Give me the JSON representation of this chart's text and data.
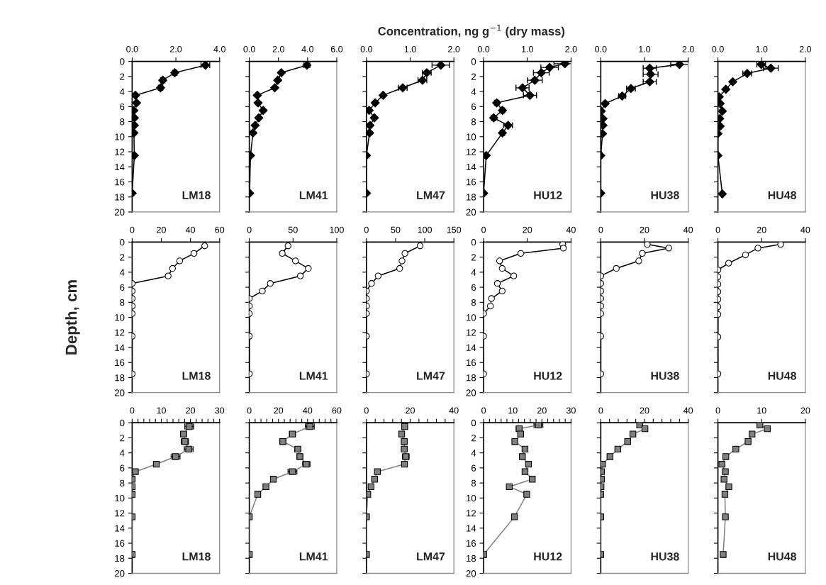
{
  "chart_data": [
    {
      "type": "line",
      "marker": "diamond",
      "annotations": [
        "LM18"
      ],
      "xlim": [
        0,
        4
      ],
      "xticks": [
        {
          "value": 0,
          "label": "0.0"
        },
        {
          "value": 2,
          "label": "2.0"
        },
        {
          "value": 4,
          "label": "4.0"
        }
      ],
      "ylim": [
        20,
        0
      ],
      "yticks": [
        0,
        2,
        4,
        6,
        8,
        10,
        12,
        14,
        16,
        18,
        20
      ],
      "series": [
        {
          "color": "#000000",
          "x": [
            3.35,
            1.95,
            1.4,
            1.3,
            0.15,
            0.2,
            0.08,
            0.1,
            0.1,
            0.08,
            0.1,
            0.0
          ],
          "values": [
            0.5,
            1.5,
            2.5,
            3.5,
            4.5,
            5.5,
            6.5,
            7.5,
            8.5,
            9.5,
            12.5,
            17.5
          ],
          "xerrors": [
            0.2,
            0.1,
            0.1,
            0.1,
            null,
            null,
            null,
            null,
            null,
            null,
            null,
            null
          ]
        }
      ]
    },
    {
      "type": "line",
      "marker": "diamond",
      "annotations": [
        "LM41"
      ],
      "tick_labels": "x",
      "xlim": [
        0,
        6
      ],
      "xticks": [
        {
          "value": 0,
          "label": "0.0"
        },
        {
          "value": 2,
          "label": "2.0"
        },
        {
          "value": 4,
          "label": "4.0"
        },
        {
          "value": 6,
          "label": "6.0"
        }
      ],
      "ylim": [
        20,
        0
      ],
      "yticks": [
        0,
        2,
        4,
        6,
        8,
        10,
        12,
        14,
        16,
        18,
        20
      ],
      "series": [
        {
          "color": "#000000",
          "x": [
            3.95,
            2.2,
            1.95,
            1.75,
            0.55,
            0.6,
            0.95,
            0.65,
            0.4,
            0.25,
            0.08,
            0.02
          ],
          "values": [
            0.5,
            1.5,
            2.5,
            3.5,
            4.5,
            5.5,
            6.5,
            7.5,
            8.5,
            9.5,
            12.5,
            17.5
          ],
          "xerrors": [
            0.2,
            null,
            null,
            null,
            null,
            null,
            null,
            null,
            null,
            null,
            null,
            null
          ]
        }
      ]
    },
    {
      "type": "line",
      "marker": "diamond",
      "title": "Concentration, ng g$^{−1}$ (dry mass)",
      "annotations": [
        "LM47"
      ],
      "tick_labels": "x",
      "xlim": [
        0,
        2
      ],
      "xticks": [
        {
          "value": 0,
          "label": "0.0"
        },
        {
          "value": 1,
          "label": "1.0"
        },
        {
          "value": 2,
          "label": "2.0"
        }
      ],
      "ylim": [
        20,
        0
      ],
      "yticks": [
        0,
        2,
        4,
        6,
        8,
        10,
        12,
        14,
        16,
        18,
        20
      ],
      "series": [
        {
          "color": "#000000",
          "x": [
            1.7,
            1.38,
            1.28,
            0.83,
            0.38,
            0.2,
            0.06,
            0.18,
            0.08,
            0.07,
            0.0,
            0.0
          ],
          "values": [
            0.5,
            1.5,
            2.5,
            3.5,
            4.5,
            5.5,
            6.5,
            7.5,
            8.5,
            9.5,
            12.5,
            17.5
          ],
          "xerrors": [
            0.2,
            0.1,
            0.1,
            0.1,
            null,
            null,
            null,
            null,
            null,
            null,
            null,
            null
          ]
        }
      ]
    },
    {
      "type": "line",
      "marker": "diamond",
      "annotations": [
        "HU12"
      ],
      "xlim": [
        0,
        2
      ],
      "xticks": [
        {
          "value": 0,
          "label": "0.0"
        },
        {
          "value": 1,
          "label": "1.0"
        },
        {
          "value": 2,
          "label": "2.0"
        }
      ],
      "ylim": [
        20,
        0
      ],
      "yticks": [
        0,
        2,
        4,
        6,
        8,
        10,
        12,
        14,
        16,
        18,
        20
      ],
      "series": [
        {
          "color": "#000000",
          "x": [
            1.86,
            1.51,
            1.32,
            1.17,
            0.89,
            1.06,
            0.3,
            0.43,
            0.23,
            0.56,
            0.43,
            0.06,
            0.0
          ],
          "values": [
            0.3,
            0.8,
            1.5,
            2.5,
            3.5,
            4.5,
            5.5,
            6.5,
            7.5,
            8.5,
            9.5,
            12.5,
            17.5
          ],
          "xerrors": [
            0.25,
            0.2,
            0.18,
            0.17,
            0.15,
            0.15,
            0.05,
            0.05,
            0.05,
            0.1,
            0.05,
            0.02,
            null
          ]
        }
      ]
    },
    {
      "type": "line",
      "marker": "diamond",
      "annotations": [
        "HU38"
      ],
      "tick_labels": "x",
      "xlim": [
        0,
        2
      ],
      "xticks": [
        {
          "value": 0,
          "label": "0.0"
        },
        {
          "value": 1,
          "label": "1.0"
        },
        {
          "value": 2,
          "label": "2.0"
        }
      ],
      "ylim": [
        20,
        0
      ],
      "yticks": [
        0,
        2,
        4,
        6,
        8,
        10,
        12,
        14,
        16,
        18,
        20
      ],
      "series": [
        {
          "color": "#000000",
          "x": [
            1.8,
            1.12,
            1.14,
            1.12,
            0.69,
            0.49,
            0.1,
            0.01,
            0.05,
            0.05,
            0.04,
            0.0,
            0.0
          ],
          "values": [
            0.4,
            0.9,
            1.7,
            2.7,
            3.6,
            4.6,
            5.6,
            6.6,
            7.6,
            8.5,
            9.6,
            12.5,
            17.5
          ],
          "xerrors": [
            0.2,
            0.15,
            0.17,
            0.15,
            0.1,
            0.08,
            null,
            null,
            null,
            null,
            null,
            null,
            null
          ]
        }
      ]
    },
    {
      "type": "line",
      "marker": "diamond",
      "annotations": [
        "HU48"
      ],
      "tick_labels": "x",
      "xlim": [
        0,
        2
      ],
      "xticks": [
        {
          "value": 0,
          "label": "0.0"
        },
        {
          "value": 1,
          "label": "1.0"
        },
        {
          "value": 2,
          "label": "2.0"
        }
      ],
      "ylim": [
        20,
        0
      ],
      "yticks": [
        0,
        2,
        4,
        6,
        8,
        10,
        12,
        14,
        16,
        18,
        20
      ],
      "series": [
        {
          "color": "#000000",
          "x": [
            0.99,
            1.21,
            0.67,
            0.34,
            0.18,
            0.03,
            0.05,
            0.1,
            0.04,
            0.05,
            0.0,
            0.0,
            0.1
          ],
          "values": [
            0.4,
            0.9,
            1.6,
            2.7,
            3.7,
            4.7,
            5.6,
            6.6,
            7.6,
            8.6,
            9.6,
            12.5,
            17.6
          ],
          "xerrors": [
            0.1,
            0.17,
            0.1,
            null,
            null,
            null,
            null,
            null,
            null,
            null,
            null,
            null,
            null
          ]
        }
      ]
    },
    {
      "type": "line",
      "marker": "circle",
      "ylabel": "Depth, cm",
      "annotations": [
        "LM18"
      ],
      "xlim": [
        0,
        60
      ],
      "xticks": [
        0,
        20,
        40,
        60
      ],
      "ylim": [
        20,
        0
      ],
      "yticks": [
        0,
        2,
        4,
        6,
        8,
        10,
        12,
        14,
        16,
        18,
        20
      ],
      "series": [
        {
          "color": "#000000",
          "x": [
            49.8,
            42.4,
            32.6,
            27.7,
            24.7,
            0,
            0,
            0,
            0,
            0,
            0,
            0
          ],
          "values": [
            0.5,
            1.5,
            2.5,
            3.5,
            4.5,
            5.5,
            6.5,
            7.5,
            8.5,
            9.5,
            12.5,
            17.5
          ]
        }
      ]
    },
    {
      "type": "line",
      "marker": "circle",
      "annotations": [
        "LM41"
      ],
      "tick_labels": "x",
      "xlim": [
        0,
        100
      ],
      "xticks": [
        0,
        50,
        100
      ],
      "ylim": [
        20,
        0
      ],
      "yticks": [
        0,
        2,
        4,
        6,
        8,
        10,
        12,
        14,
        16,
        18,
        20
      ],
      "series": [
        {
          "color": "#000000",
          "x": [
            44.3,
            37.7,
            52.8,
            67.5,
            58.4,
            24,
            14.9,
            0,
            0,
            0,
            0,
            0
          ],
          "values": [
            0.5,
            1.5,
            2.5,
            3.5,
            4.5,
            5.5,
            6.5,
            7.5,
            8.5,
            9.5,
            12.5,
            17.5
          ]
        }
      ]
    },
    {
      "type": "line",
      "marker": "circle",
      "annotations": [
        "LM47"
      ],
      "tick_labels": "x",
      "xlim": [
        0,
        150
      ],
      "xticks": [
        0,
        50,
        100,
        150
      ],
      "ylim": [
        20,
        0
      ],
      "yticks": [
        0,
        2,
        4,
        6,
        8,
        10,
        12,
        14,
        16,
        18,
        20
      ],
      "series": [
        {
          "color": "#000000",
          "x": [
            92,
            66,
            61,
            57,
            20,
            8.6,
            0,
            0,
            0,
            0,
            0,
            0
          ],
          "values": [
            0.5,
            1.5,
            2.5,
            3.5,
            4.5,
            5.5,
            6.5,
            7.5,
            8.5,
            9.5,
            12.5,
            17.5
          ]
        }
      ]
    },
    {
      "type": "line",
      "marker": "circle",
      "annotations": [
        "HU12"
      ],
      "xlim": [
        0,
        40
      ],
      "xticks": [
        0,
        20,
        40
      ],
      "ylim": [
        20,
        0
      ],
      "yticks": [
        0,
        2,
        4,
        6,
        8,
        10,
        12,
        14,
        16,
        18,
        20
      ],
      "series": [
        {
          "color": "#000000",
          "x": [
            36.2,
            36.5,
            17,
            7.3,
            8.5,
            13.8,
            6.3,
            8.5,
            3.6,
            3.1,
            0,
            0,
            0
          ],
          "values": [
            0.3,
            0.8,
            1.5,
            2.5,
            3.5,
            4.5,
            5.5,
            6.5,
            7.5,
            8.5,
            9.5,
            12.5,
            17.5
          ]
        }
      ]
    },
    {
      "type": "line",
      "marker": "circle",
      "annotations": [
        "HU38"
      ],
      "tick_labels": "x",
      "xlim": [
        0,
        40
      ],
      "xticks": [
        0,
        20,
        40
      ],
      "ylim": [
        20,
        0
      ],
      "yticks": [
        0,
        2,
        4,
        6,
        8,
        10,
        12,
        14,
        16,
        18,
        20
      ],
      "series": [
        {
          "color": "#000000",
          "x": [
            21.3,
            31.1,
            19,
            17.4,
            7.1,
            0,
            0,
            0,
            0,
            0,
            0,
            0,
            0
          ],
          "values": [
            0.3,
            0.8,
            1.5,
            2.5,
            3.5,
            4.5,
            5.5,
            6.5,
            7.5,
            8.5,
            9.5,
            12.5,
            17.5
          ]
        }
      ]
    },
    {
      "type": "line",
      "marker": "circle",
      "annotations": [
        "HU48"
      ],
      "tick_labels": "x",
      "xlim": [
        0,
        40
      ],
      "xticks": [
        0,
        20,
        40
      ],
      "ylim": [
        20,
        0
      ],
      "yticks": [
        0,
        2,
        4,
        6,
        8,
        10,
        12,
        14,
        16,
        18,
        20
      ],
      "series": [
        {
          "color": "#000000",
          "x": [
            28.7,
            18.3,
            12.6,
            4.9,
            0,
            0,
            0,
            0,
            0,
            0,
            0,
            0,
            0
          ],
          "values": [
            0.3,
            0.8,
            1.7,
            2.8,
            3.7,
            4.6,
            5.6,
            6.6,
            7.6,
            8.6,
            9.6,
            12.6,
            17.5
          ]
        }
      ]
    },
    {
      "type": "line",
      "marker": "square",
      "annotations": [
        "LM18"
      ],
      "xlim": [
        0,
        30
      ],
      "xticks": [
        0,
        {
          "value": 2,
          "label": null
        },
        {
          "value": 4,
          "label": null
        },
        {
          "value": 6,
          "label": null
        },
        {
          "value": 8,
          "label": null
        },
        10,
        {
          "value": 12,
          "label": null
        },
        {
          "value": 14,
          "label": null
        },
        {
          "value": 16,
          "label": null
        },
        {
          "value": 18,
          "label": null
        },
        20,
        {
          "value": 22,
          "label": null
        },
        {
          "value": 24,
          "label": null
        },
        {
          "value": 26,
          "label": null
        },
        {
          "value": 28,
          "label": null
        },
        30
      ],
      "ylim": [
        20,
        0
      ],
      "yticks": [
        0,
        2,
        4,
        6,
        8,
        10,
        12,
        14,
        16,
        18,
        20
      ],
      "series": [
        {
          "color": "#808080",
          "x": [
            19.6,
            17.6,
            18.1,
            19.4,
            14.9,
            8.3,
            1.1,
            0,
            0,
            0,
            0,
            0
          ],
          "values": [
            0.5,
            1.5,
            2.5,
            3.5,
            4.5,
            5.5,
            6.5,
            7.5,
            8.5,
            9.5,
            12.5,
            17.5
          ],
          "xerrors": [
            1.5,
            1,
            1.2,
            1.5,
            1.5,
            0.7,
            0.5,
            null,
            null,
            null,
            null,
            null
          ]
        }
      ]
    },
    {
      "type": "line",
      "marker": "square",
      "annotations": [
        "LM41"
      ],
      "tick_labels": "x",
      "xlim": [
        0,
        60
      ],
      "xticks": [
        0,
        {
          "value": 4,
          "label": null
        },
        {
          "value": 8,
          "label": null
        },
        {
          "value": 12,
          "label": null
        },
        {
          "value": 16,
          "label": null
        },
        20,
        {
          "value": 24,
          "label": null
        },
        {
          "value": 28,
          "label": null
        },
        {
          "value": 32,
          "label": null
        },
        {
          "value": 36,
          "label": null
        },
        40,
        {
          "value": 44,
          "label": null
        },
        {
          "value": 48,
          "label": null
        },
        {
          "value": 52,
          "label": null
        },
        {
          "value": 56,
          "label": null
        },
        60
      ],
      "ylim": [
        20,
        0
      ],
      "yticks": [
        0,
        2,
        4,
        6,
        8,
        10,
        12,
        14,
        16,
        18,
        20
      ],
      "series": [
        {
          "color": "#808080",
          "x": [
            41.5,
            29.6,
            23,
            33.3,
            34.7,
            39.1,
            29.6,
            16.5,
            11.4,
            5.8,
            0,
            0
          ],
          "values": [
            0.5,
            1.5,
            2.5,
            3.5,
            4.5,
            5.5,
            6.5,
            7.5,
            8.5,
            9.5,
            12.5,
            17.5
          ],
          "xerrors": [
            3,
            2,
            2,
            2,
            2,
            2.5,
            3,
            1,
            1,
            null,
            null,
            null
          ]
        }
      ]
    },
    {
      "type": "line",
      "marker": "square",
      "annotations": [
        "LM47"
      ],
      "tick_labels": "x",
      "xlim": [
        0,
        40
      ],
      "xticks": [
        0,
        {
          "value": 4,
          "label": null
        },
        {
          "value": 8,
          "label": null
        },
        {
          "value": 12,
          "label": null
        },
        {
          "value": 16,
          "label": null
        },
        20,
        {
          "value": 24,
          "label": null
        },
        {
          "value": 28,
          "label": null
        },
        {
          "value": 32,
          "label": null
        },
        {
          "value": 36,
          "label": null
        },
        40
      ],
      "ylim": [
        20,
        0
      ],
      "yticks": [
        0,
        2,
        4,
        6,
        8,
        10,
        12,
        14,
        16,
        18,
        20
      ],
      "series": [
        {
          "color": "#808080",
          "x": [
            17.5,
            16.1,
            17.3,
            17.3,
            18,
            17.4,
            5,
            3.7,
            2.1,
            0.6,
            0,
            0
          ],
          "values": [
            0.5,
            1.5,
            2.5,
            3.5,
            4.5,
            5.5,
            6.5,
            7.5,
            8.5,
            9.5,
            12.5,
            17.5
          ],
          "xerrors": [
            1.2,
            1,
            1.2,
            1.2,
            1.5,
            1.2,
            0.5,
            0.5,
            0.5,
            null,
            null,
            null
          ]
        }
      ]
    },
    {
      "type": "line",
      "marker": "square",
      "annotations": [
        "HU12"
      ],
      "xlim": [
        0,
        30
      ],
      "xticks": [
        0,
        {
          "value": 2,
          "label": null
        },
        {
          "value": 4,
          "label": null
        },
        {
          "value": 6,
          "label": null
        },
        {
          "value": 8,
          "label": null
        },
        10,
        {
          "value": 12,
          "label": null
        },
        {
          "value": 14,
          "label": null
        },
        {
          "value": 16,
          "label": null
        },
        {
          "value": 18,
          "label": null
        },
        20,
        {
          "value": 22,
          "label": null
        },
        {
          "value": 24,
          "label": null
        },
        {
          "value": 26,
          "label": null
        },
        {
          "value": 28,
          "label": null
        },
        30
      ],
      "ylim": [
        20,
        0
      ],
      "yticks": [
        0,
        2,
        4,
        6,
        8,
        10,
        12,
        14,
        16,
        18,
        20
      ],
      "series": [
        {
          "color": "#808080",
          "x": [
            18.8,
            12.2,
            12.7,
            10.7,
            14.2,
            13.3,
            15.4,
            14.2,
            16.7,
            8.8,
            14.8,
            10.6,
            0
          ],
          "values": [
            0.3,
            0.8,
            1.5,
            2.5,
            3.5,
            4.5,
            5.5,
            6.5,
            7.5,
            8.5,
            9.5,
            12.5,
            17.5
          ],
          "xerrors": [
            1.5,
            1,
            0.7,
            0.7,
            0.8,
            0.8,
            0.7,
            0.7,
            0.8,
            0.5,
            0.8,
            0.5,
            null
          ]
        }
      ]
    },
    {
      "type": "line",
      "marker": "square",
      "annotations": [
        "HU38"
      ],
      "tick_labels": "x",
      "xlim": [
        0,
        40
      ],
      "xticks": [
        0,
        {
          "value": 4,
          "label": null
        },
        {
          "value": 8,
          "label": null
        },
        {
          "value": 12,
          "label": null
        },
        {
          "value": 16,
          "label": null
        },
        20,
        {
          "value": 24,
          "label": null
        },
        {
          "value": 28,
          "label": null
        },
        {
          "value": 32,
          "label": null
        },
        {
          "value": 36,
          "label": null
        },
        40
      ],
      "ylim": [
        20,
        0
      ],
      "yticks": [
        0,
        2,
        4,
        6,
        8,
        10,
        12,
        14,
        16,
        18,
        20
      ],
      "series": [
        {
          "color": "#808080",
          "x": [
            17.8,
            20.2,
            14.7,
            12.3,
            7.8,
            4.2,
            0.8,
            0.3,
            0.3,
            0.1,
            0,
            0,
            0
          ],
          "values": [
            0.3,
            0.8,
            1.5,
            2.5,
            3.5,
            4.5,
            5.5,
            6.5,
            7.5,
            8.5,
            9.5,
            12.5,
            17.5
          ],
          "xerrors": [
            1,
            1,
            1,
            1,
            1,
            1,
            0.8,
            0.8,
            0.8,
            null,
            null,
            null,
            null
          ]
        }
      ]
    },
    {
      "type": "line",
      "marker": "square",
      "annotations": [
        "HU48"
      ],
      "tick_labels": "x",
      "xlim": [
        0,
        20
      ],
      "xticks": [
        0,
        10,
        20
      ],
      "ylim": [
        20,
        0
      ],
      "yticks": [
        0,
        2,
        4,
        6,
        8,
        10,
        12,
        14,
        16,
        18,
        20
      ],
      "series": [
        {
          "color": "#808080",
          "x": [
            9.6,
            11.3,
            7.8,
            6.9,
            4.1,
            1.8,
            0.9,
            1.7,
            1.4,
            2.5,
            1.6,
            1.7,
            1.2
          ],
          "values": [
            0.3,
            0.8,
            1.5,
            2.5,
            3.5,
            4.5,
            5.5,
            6.5,
            7.5,
            8.5,
            9.5,
            12.5,
            17.5
          ],
          "xerrors": [
            0.5,
            0.5,
            0.4,
            0.4,
            0.4,
            0.3,
            null,
            null,
            null,
            null,
            null,
            null,
            null
          ]
        }
      ]
    }
  ]
}
